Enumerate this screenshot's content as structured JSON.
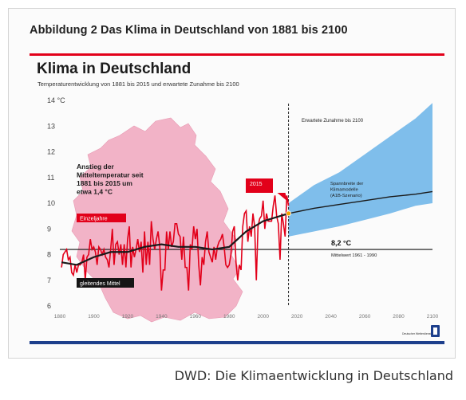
{
  "figure_title": "Abbildung 2 Das Klima in Deutschland von 1881 bis 2100",
  "caption": "DWD: Die Klimaentwicklung in Deutschland",
  "colors": {
    "accent_red": "#e2001a",
    "brand_blue": "#1d3f8c",
    "map_pink": "#f2b3c7",
    "projection_blue": "#69b3e7"
  },
  "chart_data": {
    "type": "line",
    "title": "Klima in Deutschland",
    "subtitle": "Temperaturentwicklung von 1881 bis 2015 und erwartete Zunahme bis 2100",
    "y_unit": "°C",
    "ylim": [
      6,
      14
    ],
    "xlim": [
      1880,
      2100
    ],
    "yticks": [
      "14 °C",
      "13",
      "12",
      "11",
      "10",
      "9",
      "8",
      "7",
      "6"
    ],
    "xticks": [
      "1880",
      "1900",
      "1920",
      "1940",
      "1960",
      "1980",
      "2000",
      "2020",
      "2040",
      "2060",
      "2080",
      "2100"
    ],
    "annotations": {
      "rise_text": "Anstieg der Mittel­temperatur seit 1881 bis 2015 um etwa 1,4 °C",
      "einzeljahre": "Einzeljahre",
      "gleitendes_mittel": "gleitendes Mittel",
      "year_2015": "2015",
      "expected_increase": "Erwartete Zunahme bis 2100",
      "spannbreite": "Spannbreite der Klimamodelle (A1B-Szenario)",
      "mean_value": "8,2 °C",
      "mean_label": "Mittelwert 1961 - 1990",
      "source_logo_text": "Deutscher Wetterdienst"
    },
    "reference_line": {
      "name": "Mittelwert 1961 - 1990",
      "value": 8.2
    },
    "divider_year": 2015,
    "series": [
      {
        "name": "Einzeljahre",
        "x": [
          1881,
          1882,
          1883,
          1884,
          1885,
          1886,
          1887,
          1888,
          1889,
          1890,
          1891,
          1892,
          1893,
          1894,
          1895,
          1896,
          1897,
          1898,
          1899,
          1900,
          1901,
          1902,
          1903,
          1904,
          1905,
          1906,
          1907,
          1908,
          1909,
          1910,
          1911,
          1912,
          1913,
          1914,
          1915,
          1916,
          1917,
          1918,
          1919,
          1920,
          1921,
          1922,
          1923,
          1924,
          1925,
          1926,
          1927,
          1928,
          1929,
          1930,
          1931,
          1932,
          1933,
          1934,
          1935,
          1936,
          1937,
          1938,
          1939,
          1940,
          1941,
          1942,
          1943,
          1944,
          1945,
          1946,
          1947,
          1948,
          1949,
          1950,
          1951,
          1952,
          1953,
          1954,
          1955,
          1956,
          1957,
          1958,
          1959,
          1960,
          1961,
          1962,
          1963,
          1964,
          1965,
          1966,
          1967,
          1968,
          1969,
          1970,
          1971,
          1972,
          1973,
          1974,
          1975,
          1976,
          1977,
          1978,
          1979,
          1980,
          1981,
          1982,
          1983,
          1984,
          1985,
          1986,
          1987,
          1988,
          1989,
          1990,
          1991,
          1992,
          1993,
          1994,
          1995,
          1996,
          1997,
          1998,
          1999,
          2000,
          2001,
          2002,
          2003,
          2004,
          2005,
          2006,
          2007,
          2008,
          2009,
          2010,
          2011,
          2012,
          2013,
          2014,
          2015
        ],
        "y": [
          7.5,
          8.0,
          8.1,
          8.2,
          7.8,
          7.9,
          7.3,
          7.2,
          7.6,
          7.3,
          7.6,
          7.6,
          7.7,
          8.0,
          7.0,
          7.9,
          8.0,
          8.6,
          8.2,
          8.3,
          8.1,
          7.6,
          8.3,
          8.2,
          8.0,
          8.2,
          7.9,
          7.8,
          7.5,
          8.2,
          9.0,
          7.6,
          8.4,
          8.5,
          8.0,
          8.4,
          7.6,
          8.4,
          7.5,
          8.6,
          9.1,
          7.5,
          8.3,
          7.9,
          8.2,
          8.6,
          8.1,
          8.5,
          7.3,
          8.9,
          7.6,
          8.5,
          7.6,
          9.3,
          8.6,
          8.2,
          8.6,
          8.9,
          8.3,
          6.6,
          7.4,
          7.4,
          8.9,
          8.2,
          8.9,
          8.3,
          8.5,
          9.2,
          9.2,
          8.8,
          8.7,
          7.8,
          8.7,
          7.5,
          7.5,
          6.6,
          8.4,
          8.2,
          9.1,
          8.6,
          9.0,
          7.6,
          6.8,
          7.9,
          7.6,
          8.5,
          8.9,
          8.1,
          7.9,
          7.7,
          8.3,
          7.8,
          8.3,
          8.5,
          8.6,
          8.8,
          8.3,
          7.6,
          7.5,
          7.6,
          8.0,
          8.9,
          9.1,
          7.7,
          7.0,
          7.6,
          7.4,
          9.1,
          9.6,
          9.7,
          8.5,
          9.1,
          8.7,
          9.6,
          9.1,
          7.0,
          9.1,
          9.4,
          9.5,
          10.1,
          9.0,
          9.6,
          9.3,
          9.3,
          9.3,
          9.9,
          10.3,
          9.5,
          9.2,
          7.8,
          9.6,
          9.2,
          8.7,
          10.3,
          9.9
        ],
        "color": "#e2001a"
      },
      {
        "name": "gleitendes Mittel",
        "x": [
          1881,
          1890,
          1900,
          1910,
          1920,
          1930,
          1940,
          1950,
          1960,
          1970,
          1980,
          1990,
          2000,
          2015
        ],
        "y": [
          7.7,
          7.6,
          7.9,
          8.1,
          8.1,
          8.3,
          8.4,
          8.3,
          8.3,
          8.2,
          8.3,
          8.9,
          9.3,
          9.6
        ],
        "color": "#1a1a1a"
      },
      {
        "name": "Erwartete Zunahme bis 2100",
        "x": [
          2015,
          2030,
          2045,
          2060,
          2075,
          2090,
          2100
        ],
        "y": [
          9.6,
          9.8,
          9.95,
          10.1,
          10.25,
          10.35,
          10.45
        ],
        "color": "#1a1a1a"
      },
      {
        "name": "Spannbreite der Klimamodelle (A1B-Szenario)",
        "type": "band",
        "x": [
          2015,
          2030,
          2045,
          2060,
          2075,
          2090,
          2100
        ],
        "lower": [
          8.7,
          8.9,
          9.1,
          9.35,
          9.6,
          9.9,
          10.0
        ],
        "upper": [
          10.0,
          10.7,
          11.2,
          11.9,
          12.6,
          13.3,
          13.9
        ],
        "color": "#69b3e7"
      }
    ]
  }
}
